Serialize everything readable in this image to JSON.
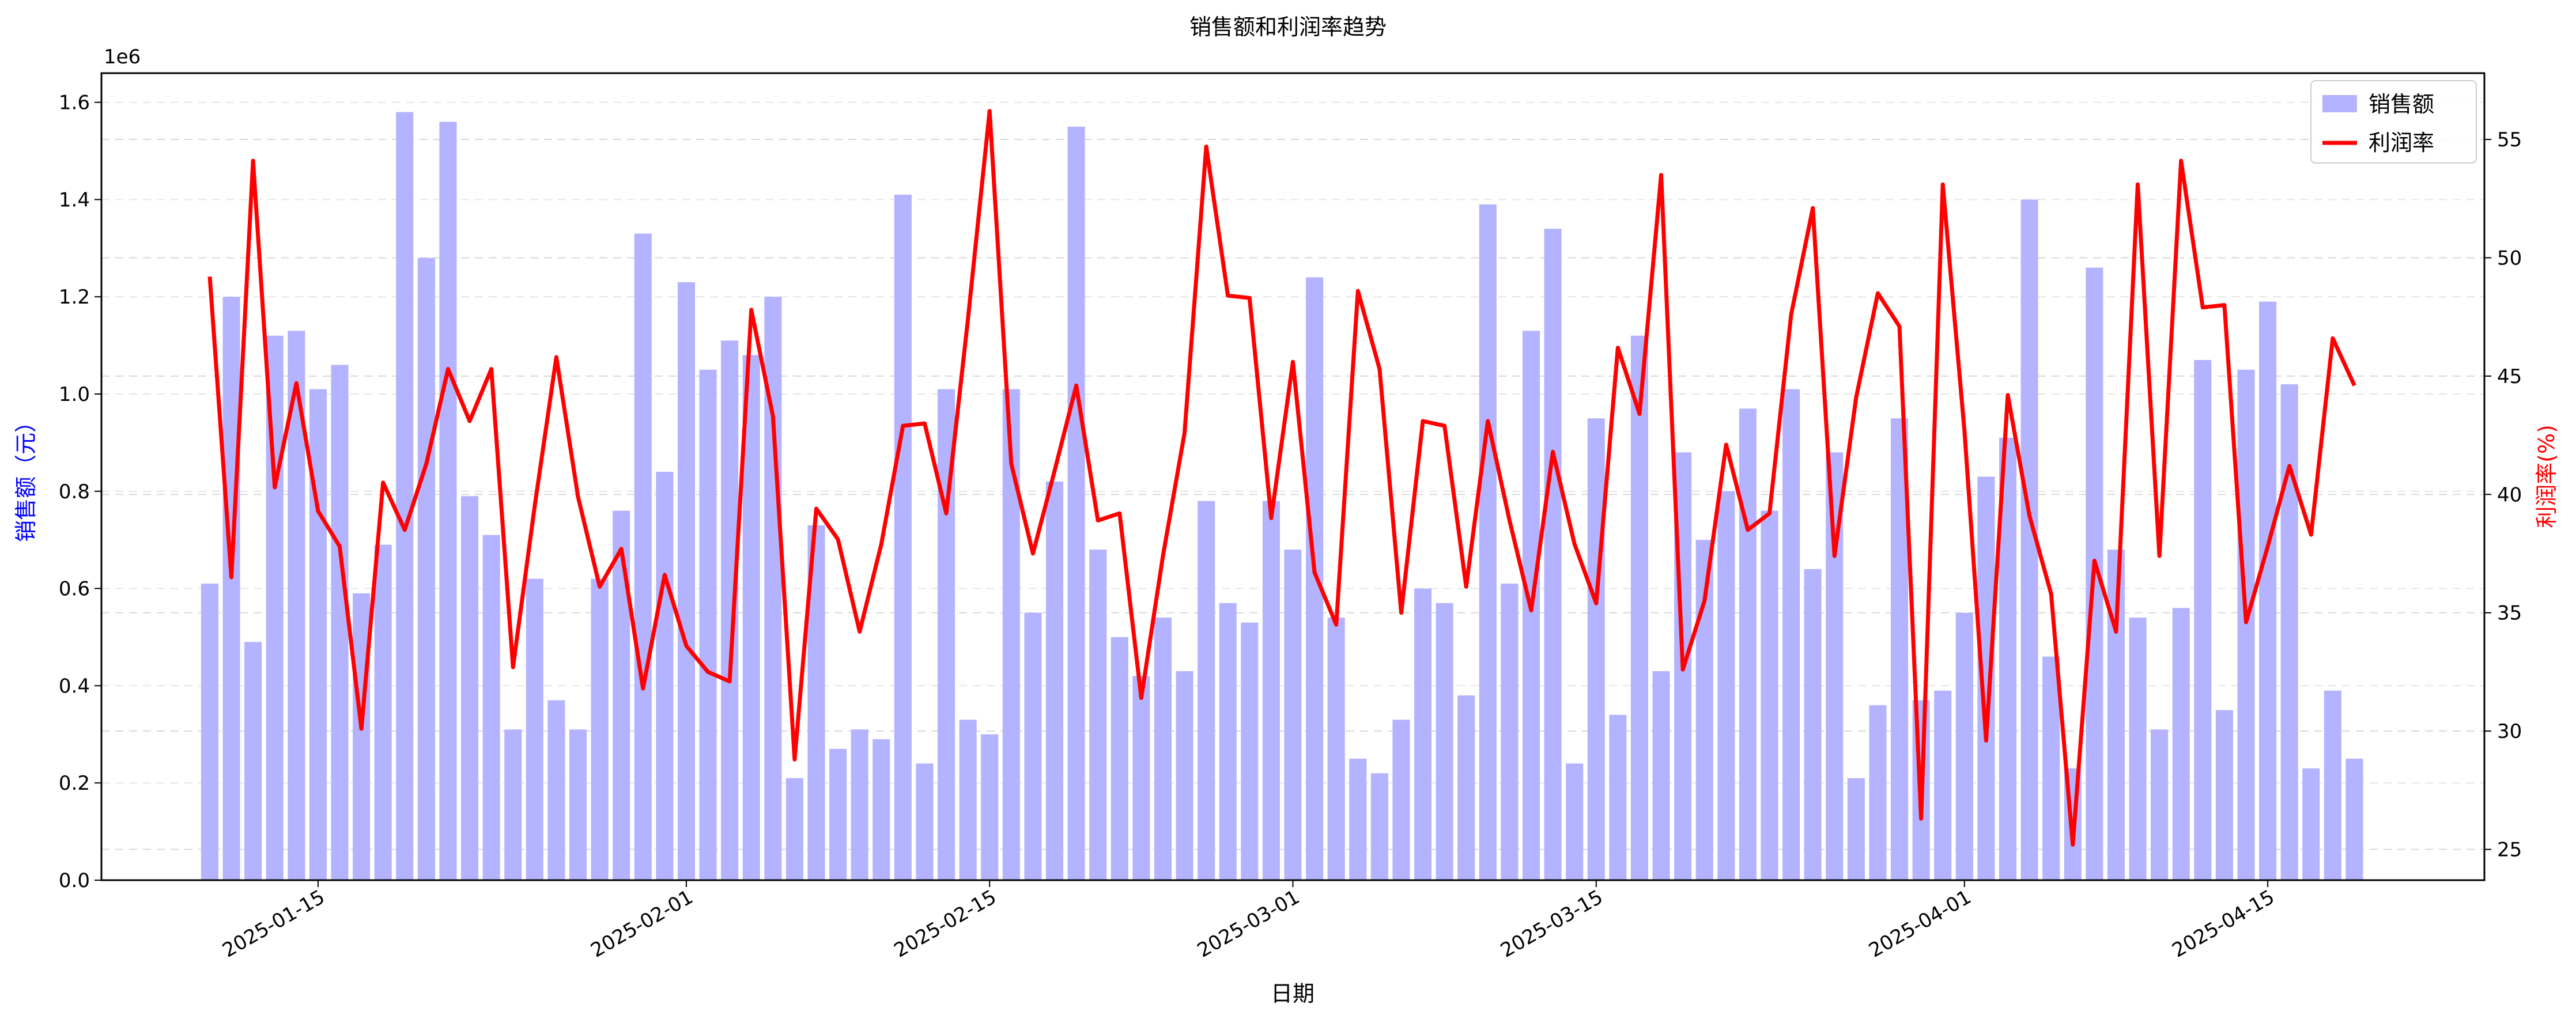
{
  "chart_data": {
    "type": "bar+line",
    "title": "销售额和利润率趋势",
    "xlabel": "日期",
    "ylabel_left": "销售额（元）",
    "ylabel_right": "利润率(%)",
    "left_offset_label": "1e6",
    "ylim_left": [
      0,
      1.66
    ],
    "ylim_right": [
      23.7,
      57.8
    ],
    "yticks_left": [
      "0.0",
      "0.2",
      "0.4",
      "0.6",
      "0.8",
      "1.0",
      "1.2",
      "1.4",
      "1.6"
    ],
    "yticks_right": [
      "25",
      "30",
      "35",
      "40",
      "45",
      "50",
      "55"
    ],
    "xticks": [
      "2025-01-15",
      "2025-02-01",
      "2025-02-15",
      "2025-03-01",
      "2025-03-15",
      "2025-04-01",
      "2025-04-15"
    ],
    "xlim": [
      "2025-01-05",
      "2025-04-25"
    ],
    "grid": true,
    "legend_position": "top-right",
    "start_date": "2025-01-10",
    "colors": {
      "bar": "#b3b3ff",
      "line": "#ff0000",
      "left_axis_label": "#0000ff",
      "right_axis_label": "#ff0000"
    },
    "series": [
      {
        "name": "销售额",
        "type": "bar",
        "unit_scale": "1e6",
        "values": [
          0.61,
          1.2,
          0.49,
          1.12,
          1.13,
          1.01,
          1.06,
          0.59,
          0.69,
          1.58,
          1.28,
          1.56,
          0.79,
          0.71,
          0.31,
          0.62,
          0.37,
          0.31,
          0.62,
          0.76,
          1.33,
          0.84,
          1.23,
          1.05,
          1.11,
          1.08,
          1.2,
          0.21,
          0.73,
          0.27,
          0.31,
          0.29,
          1.41,
          0.24,
          1.01,
          0.33,
          0.3,
          1.01,
          0.55,
          0.82,
          1.55,
          0.68,
          0.5,
          0.42,
          0.54,
          0.43,
          0.78,
          0.57,
          0.53,
          0.78,
          0.68,
          1.24,
          0.54,
          0.25,
          0.22,
          0.33,
          0.6,
          0.57,
          0.38,
          1.39,
          0.61,
          1.13,
          1.34,
          0.24,
          0.95,
          0.34,
          1.12,
          0.43,
          0.88,
          0.7,
          0.8,
          0.97,
          0.76,
          1.01,
          0.64,
          0.88,
          0.21,
          0.36,
          0.95,
          0.37,
          0.39,
          0.55,
          0.83,
          0.91,
          1.4,
          0.46,
          0.23,
          1.26,
          0.68,
          0.54,
          0.31,
          0.56,
          1.07,
          0.35,
          1.05,
          1.19,
          1.02,
          0.23,
          0.39,
          0.25
        ]
      },
      {
        "name": "利润率",
        "type": "line",
        "values": [
          49.2,
          36.5,
          54.1,
          40.3,
          44.7,
          39.3,
          37.8,
          30.1,
          40.5,
          38.5,
          41.3,
          45.3,
          43.1,
          45.3,
          32.7,
          39.5,
          45.8,
          39.9,
          36.1,
          37.7,
          31.8,
          36.6,
          33.6,
          32.5,
          32.1,
          47.8,
          43.3,
          28.8,
          39.4,
          38.1,
          34.2,
          37.9,
          42.9,
          43.0,
          39.2,
          47.4,
          56.2,
          41.3,
          37.5,
          41.0,
          44.6,
          38.9,
          39.2,
          31.4,
          37.4,
          42.6,
          54.7,
          48.4,
          48.3,
          39.0,
          45.6,
          36.7,
          34.5,
          48.6,
          45.3,
          35.0,
          43.1,
          42.9,
          36.1,
          43.1,
          38.9,
          35.1,
          41.8,
          37.9,
          35.4,
          46.2,
          43.4,
          53.5,
          32.6,
          35.5,
          42.1,
          38.5,
          39.2,
          47.6,
          52.1,
          37.4,
          44.1,
          48.5,
          47.1,
          26.3,
          53.1,
          42.7,
          29.6,
          44.2,
          39.1,
          35.8,
          25.2,
          37.2,
          34.2,
          53.1,
          37.4,
          54.1,
          47.9,
          48.0,
          34.6,
          37.8,
          41.2,
          38.3,
          46.6,
          44.6
        ]
      }
    ]
  }
}
